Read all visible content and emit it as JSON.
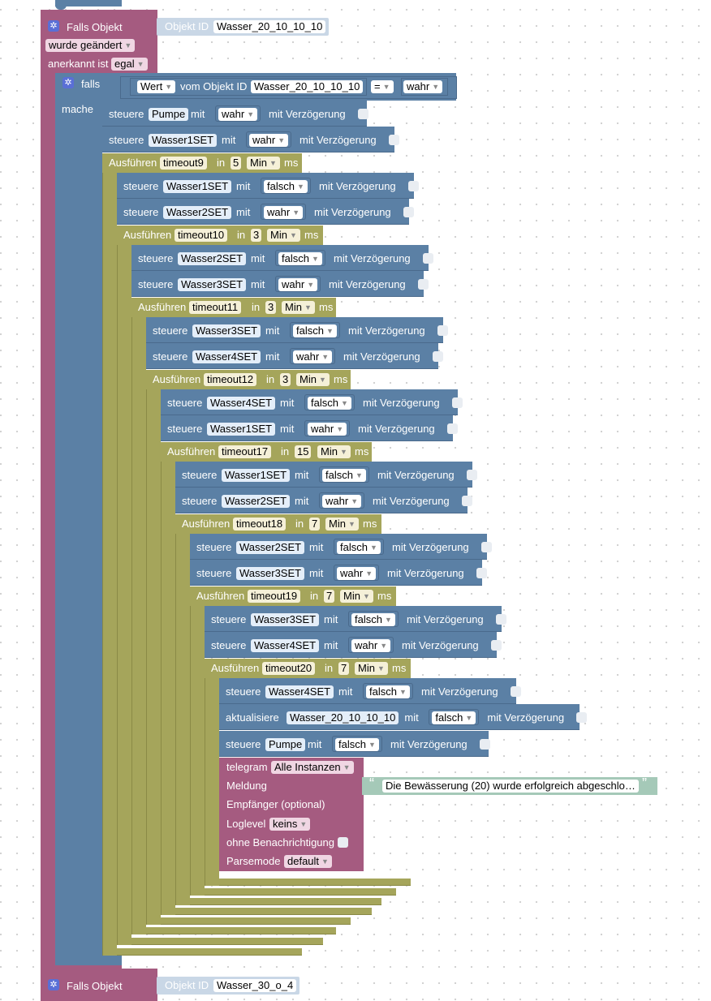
{
  "trigger1": {
    "title": "Falls Objekt",
    "changed": "wurde geändert",
    "acked_label": "anerkannt ist",
    "acked_value": "egal",
    "objid_label": "Objekt ID",
    "objid_value": "Wasser_20_10_10_10"
  },
  "iff": {
    "falls": "falls",
    "mache": "mache",
    "wert": "Wert",
    "vom": "vom Objekt ID",
    "obj": "Wasser_20_10_10_10",
    "op": "=",
    "val": "wahr"
  },
  "common": {
    "steuere": "steuere",
    "mit": "mit",
    "verz": "mit Verzögerung",
    "ausfuehren": "Ausführen",
    "in": "in",
    "min": "Min",
    "ms": "ms",
    "aktualisiere": "aktualisiere"
  },
  "rows": [
    {
      "kind": "set",
      "obj": "Pumpe",
      "val": "wahr"
    },
    {
      "kind": "set",
      "obj": "Wasser1SET",
      "val": "wahr"
    },
    {
      "kind": "timeout",
      "name": "timeout9",
      "num": "5"
    },
    {
      "kind": "set",
      "obj": "Wasser1SET",
      "val": "falsch"
    },
    {
      "kind": "set",
      "obj": "Wasser2SET",
      "val": "wahr"
    },
    {
      "kind": "timeout",
      "name": "timeout10",
      "num": "3"
    },
    {
      "kind": "set",
      "obj": "Wasser2SET",
      "val": "falsch"
    },
    {
      "kind": "set",
      "obj": "Wasser3SET",
      "val": "wahr"
    },
    {
      "kind": "timeout",
      "name": "timeout11",
      "num": "3"
    },
    {
      "kind": "set",
      "obj": "Wasser3SET",
      "val": "falsch"
    },
    {
      "kind": "set",
      "obj": "Wasser4SET",
      "val": "wahr"
    },
    {
      "kind": "timeout",
      "name": "timeout12",
      "num": "3"
    },
    {
      "kind": "set",
      "obj": "Wasser4SET",
      "val": "falsch"
    },
    {
      "kind": "set",
      "obj": "Wasser1SET",
      "val": "wahr"
    },
    {
      "kind": "timeout",
      "name": "timeout17",
      "num": "15"
    },
    {
      "kind": "set",
      "obj": "Wasser1SET",
      "val": "falsch"
    },
    {
      "kind": "set",
      "obj": "Wasser2SET",
      "val": "wahr"
    },
    {
      "kind": "timeout",
      "name": "timeout18",
      "num": "7"
    },
    {
      "kind": "set",
      "obj": "Wasser2SET",
      "val": "falsch"
    },
    {
      "kind": "set",
      "obj": "Wasser3SET",
      "val": "wahr"
    },
    {
      "kind": "timeout",
      "name": "timeout19",
      "num": "7"
    },
    {
      "kind": "set",
      "obj": "Wasser3SET",
      "val": "falsch"
    },
    {
      "kind": "set",
      "obj": "Wasser4SET",
      "val": "wahr"
    },
    {
      "kind": "timeout",
      "name": "timeout20",
      "num": "7"
    },
    {
      "kind": "set",
      "obj": "Wasser4SET",
      "val": "falsch"
    },
    {
      "kind": "update",
      "obj": "Wasser_20_10_10_10",
      "val": "falsch"
    },
    {
      "kind": "set",
      "obj": "Pumpe",
      "val": "falsch"
    }
  ],
  "telegram": {
    "title": "telegram",
    "instances": "Alle Instanzen",
    "meldung": "Meldung",
    "message": "Die Bewässerung (20) wurde erfolgreich abgeschlo…",
    "empfaenger": "Empfänger (optional)",
    "loglevel_label": "Loglevel",
    "loglevel": "keins",
    "ohne": "ohne Benachrichtigung",
    "parsemode_label": "Parsemode",
    "parsemode": "default"
  },
  "trigger2": {
    "title": "Falls Objekt",
    "objid_label": "Objekt ID",
    "objid_value": "Wasser_30_o_4"
  },
  "colors": {
    "trigger": "#a55b80",
    "logic": "#5b80a5",
    "timeout": "#a5a55b",
    "text": "#a5c9b8"
  }
}
